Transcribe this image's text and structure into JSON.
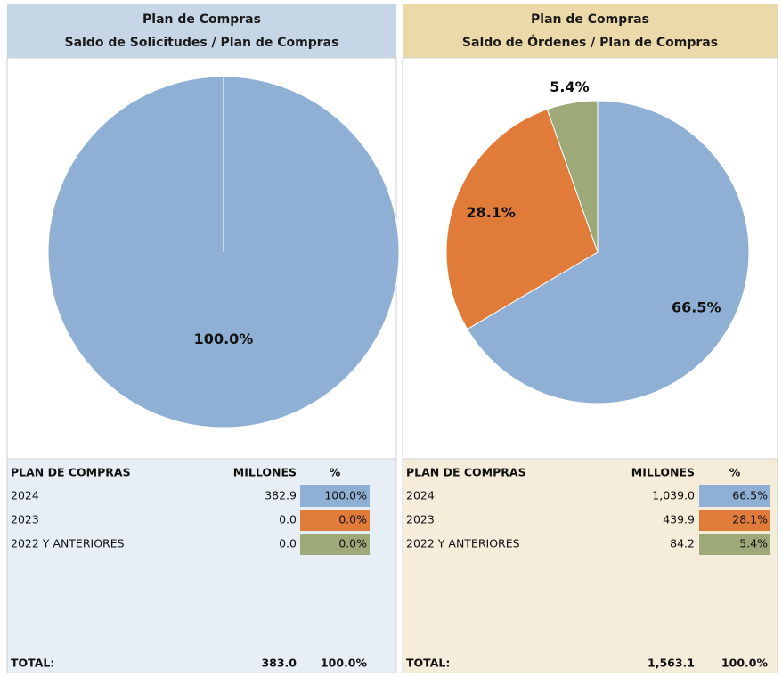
{
  "chart_data": [
    {
      "type": "pie",
      "title": "Plan de Compras",
      "subtitle": "Saldo de Solicitudes / Plan de Compras",
      "categories": [
        "2024",
        "2023",
        "2022 Y ANTERIORES"
      ],
      "values": [
        100.0,
        0.0,
        0.0
      ],
      "value_labels": [
        "100.0%",
        "0.0%",
        "0.0%"
      ],
      "colors": [
        "#8fb0d4",
        "#e07b3a",
        "#9da978"
      ]
    },
    {
      "type": "pie",
      "title": "Plan de Compras",
      "subtitle": "Saldo de Órdenes / Plan de Compras",
      "categories": [
        "2024",
        "2023",
        "2022 Y ANTERIORES"
      ],
      "values": [
        66.5,
        28.1,
        5.4
      ],
      "value_labels": [
        "66.5%",
        "28.1%",
        "5.4%"
      ],
      "colors": [
        "#8fb0d4",
        "#e07b3a",
        "#9da978"
      ]
    }
  ],
  "tables": [
    {
      "headers": [
        "PLAN DE COMPRAS",
        "MILLONES",
        "%"
      ],
      "millones": [
        "382.9",
        "0.0",
        "0.0"
      ],
      "total": [
        "TOTAL:",
        "383.0",
        "100.0%"
      ]
    },
    {
      "headers": [
        "PLAN DE COMPRAS",
        "MILLONES",
        "%"
      ],
      "millones": [
        "1,039.0",
        "439.9",
        "84.2"
      ],
      "total": [
        "TOTAL:",
        "1,563.1",
        "100.0%"
      ]
    }
  ]
}
